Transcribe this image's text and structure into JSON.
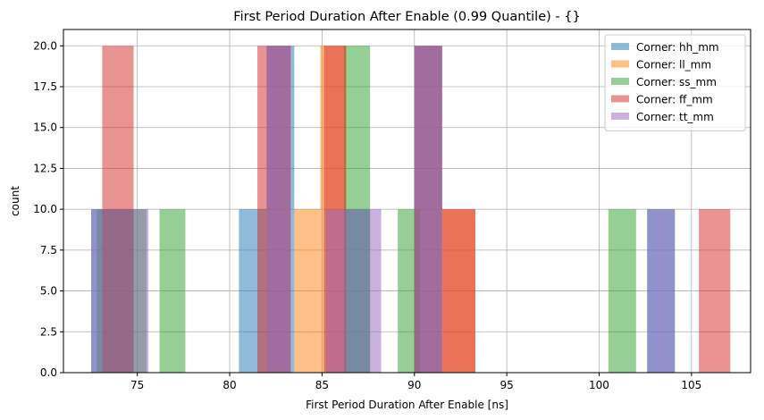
{
  "chart_data": {
    "type": "bar",
    "title": "First Period Duration After Enable (0.99 Quantile) - {}",
    "xlabel": "First Period Duration After Enable [ns]",
    "ylabel": "count",
    "xlim": [
      71.0,
      108.2
    ],
    "ylim": [
      0,
      21
    ],
    "xticks": [
      75,
      80,
      85,
      90,
      95,
      100,
      105
    ],
    "yticks": [
      0.0,
      2.5,
      5.0,
      7.5,
      10.0,
      12.5,
      15.0,
      17.5,
      20.0
    ],
    "xtick_labels": [
      "75",
      "80",
      "85",
      "90",
      "95",
      "100",
      "105"
    ],
    "ytick_labels": [
      "0.0",
      "2.5",
      "5.0",
      "7.5",
      "10.0",
      "12.5",
      "15.0",
      "17.5",
      "20.0"
    ],
    "grid": true,
    "legend_position": "top-right",
    "bar_alpha": 0.5,
    "series": [
      {
        "name": "Corner: hh_mm",
        "color": "#1f77b4",
        "bins": [
          {
            "x0": 72.5,
            "x1": 74.8,
            "count": 10
          },
          {
            "x0": 80.5,
            "x1": 82.0,
            "count": 10
          },
          {
            "x0": 82.0,
            "x1": 83.5,
            "count": 20
          },
          {
            "x0": 86.2,
            "x1": 87.6,
            "count": 10
          },
          {
            "x0": 90.0,
            "x1": 91.5,
            "count": 20
          },
          {
            "x0": 102.6,
            "x1": 104.1,
            "count": 10
          }
        ]
      },
      {
        "name": "Corner: ll_mm",
        "color": "#ff7f0e",
        "bins": [
          {
            "x0": 83.5,
            "x1": 84.9,
            "count": 10
          },
          {
            "x0": 84.9,
            "x1": 86.3,
            "count": 20
          },
          {
            "x0": 91.5,
            "x1": 93.3,
            "count": 10
          }
        ]
      },
      {
        "name": "Corner: ss_mm",
        "color": "#2ca02c",
        "bins": [
          {
            "x0": 72.8,
            "x1": 75.5,
            "count": 10
          },
          {
            "x0": 76.2,
            "x1": 77.6,
            "count": 10
          },
          {
            "x0": 86.2,
            "x1": 87.6,
            "count": 20
          },
          {
            "x0": 89.1,
            "x1": 90.3,
            "count": 10
          },
          {
            "x0": 100.5,
            "x1": 102.0,
            "count": 10
          }
        ]
      },
      {
        "name": "Corner: ff_mm",
        "color": "#d62728",
        "bins": [
          {
            "x0": 73.1,
            "x1": 74.8,
            "count": 20
          },
          {
            "x0": 81.5,
            "x1": 83.3,
            "count": 20
          },
          {
            "x0": 85.1,
            "x1": 86.3,
            "count": 20
          },
          {
            "x0": 90.0,
            "x1": 91.5,
            "count": 20
          },
          {
            "x0": 91.5,
            "x1": 93.3,
            "count": 10
          },
          {
            "x0": 105.4,
            "x1": 107.1,
            "count": 10
          }
        ]
      },
      {
        "name": "Corner: tt_mm",
        "color": "#9467bd",
        "bins": [
          {
            "x0": 72.5,
            "x1": 75.6,
            "count": 10
          },
          {
            "x0": 82.0,
            "x1": 83.3,
            "count": 20
          },
          {
            "x0": 85.2,
            "x1": 86.5,
            "count": 10
          },
          {
            "x0": 86.5,
            "x1": 88.2,
            "count": 10
          },
          {
            "x0": 90.0,
            "x1": 91.5,
            "count": 20
          },
          {
            "x0": 102.6,
            "x1": 104.1,
            "count": 10
          }
        ]
      }
    ]
  }
}
